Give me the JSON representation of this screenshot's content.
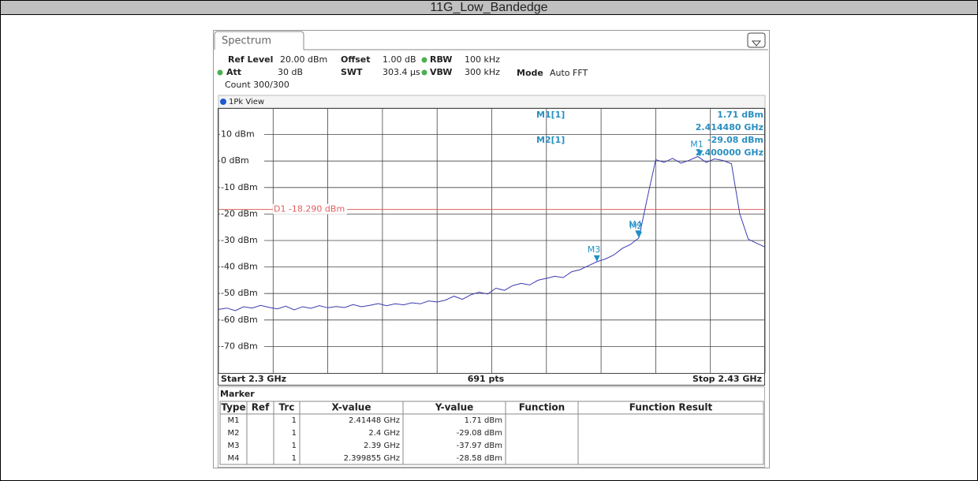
{
  "title": "11G_Low_Bandedge",
  "tab": "Spectrum",
  "settings": {
    "ref_level_label": "Ref Level",
    "ref_level": "20.00 dBm",
    "offset_label": "Offset",
    "offset": "1.00 dB",
    "rbw_label": "RBW",
    "rbw": "100 kHz",
    "att_label": "Att",
    "att": "30 dB",
    "swt_label": "SWT",
    "swt": "303.4 µs",
    "vbw_label": "VBW",
    "vbw": "300 kHz",
    "mode_label": "Mode",
    "mode": "Auto FFT",
    "count": "Count 300/300",
    "view": "1Pk View"
  },
  "readout": [
    {
      "name": "M1[1]",
      "y": "1.71 dBm",
      "x": "2.414480 GHz"
    },
    {
      "name": "M2[1]",
      "y": "-29.08 dBm",
      "x": "2.400000 GHz"
    }
  ],
  "chart_data": {
    "type": "line",
    "x": [
      2.3,
      2.302,
      2.304,
      2.306,
      2.308,
      2.31,
      2.312,
      2.314,
      2.316,
      2.318,
      2.32,
      2.322,
      2.324,
      2.326,
      2.328,
      2.33,
      2.332,
      2.334,
      2.336,
      2.338,
      2.34,
      2.342,
      2.344,
      2.346,
      2.348,
      2.35,
      2.352,
      2.354,
      2.356,
      2.358,
      2.36,
      2.362,
      2.364,
      2.366,
      2.368,
      2.37,
      2.372,
      2.374,
      2.376,
      2.378,
      2.38,
      2.382,
      2.384,
      2.386,
      2.388,
      2.39,
      2.392,
      2.394,
      2.396,
      2.398,
      2.4,
      2.402,
      2.404,
      2.406,
      2.408,
      2.41,
      2.412,
      2.414,
      2.416,
      2.418,
      2.42,
      2.422,
      2.424,
      2.426,
      2.428,
      2.43
    ],
    "series": [
      {
        "color": "#3a3ab0",
        "values": [
          -56,
          -55.5,
          -56.5,
          -55,
          -55.5,
          -54.5,
          -55.2,
          -55.8,
          -54.8,
          -56.2,
          -55,
          -55.6,
          -54.6,
          -55.4,
          -54.9,
          -55.3,
          -54.2,
          -55,
          -54.5,
          -53.8,
          -54.6,
          -53.9,
          -54.3,
          -53.5,
          -53.9,
          -52.8,
          -53.2,
          -52.5,
          -51,
          -52.2,
          -50.5,
          -49.5,
          -50.2,
          -48,
          -48.8,
          -47,
          -46.2,
          -46.8,
          -45,
          -44.3,
          -43.5,
          -44,
          -41.8,
          -41,
          -39.5,
          -38,
          -37,
          -35.5,
          -33,
          -31.5,
          -29,
          -14,
          0.5,
          -0.5,
          1,
          -0.8,
          0.3,
          1.7,
          -0.5,
          0.8,
          0.2,
          -1,
          -20,
          -29.5,
          -31,
          -32.5
        ]
      }
    ],
    "xlim": [
      2.3,
      2.43
    ],
    "ylim": [
      -80,
      20
    ],
    "xticks": [
      2.3,
      2.313,
      2.326,
      2.339,
      2.352,
      2.365,
      2.378,
      2.391,
      2.404,
      2.417,
      2.43
    ],
    "yticks": [
      {
        "value": 10,
        "label": "10 dBm"
      },
      {
        "value": 0,
        "label": "0 dBm"
      },
      {
        "value": -10,
        "label": "-10 dBm"
      },
      {
        "value": -20,
        "label": "-20 dBm"
      },
      {
        "value": -30,
        "label": "-30 dBm"
      },
      {
        "value": -40,
        "label": "-40 dBm"
      },
      {
        "value": -50,
        "label": "-50 dBm"
      },
      {
        "value": -60,
        "label": "-60 dBm"
      },
      {
        "value": -70,
        "label": "-70 dBm"
      }
    ],
    "grid": true,
    "display_line": {
      "value": -18.29,
      "label": "D1 -18.290 dBm",
      "color": "#e06060"
    },
    "markers": [
      {
        "name": "M1",
        "x": 2.41448,
        "y": 1.71
      },
      {
        "name": "M2",
        "x": 2.4,
        "y": -29.08
      },
      {
        "name": "M3",
        "x": 2.39,
        "y": -37.97
      },
      {
        "name": "M4",
        "x": 2.399855,
        "y": -28.58
      }
    ],
    "marker_color": "#1e90c8",
    "start": "Start 2.3 GHz",
    "points": "691 pts",
    "stop": "Stop 2.43 GHz"
  },
  "table": {
    "title": "Marker",
    "header": [
      "Type",
      "Ref",
      "Trc",
      "X-value",
      "Y-value",
      "Function",
      "Function Result"
    ],
    "rows": [
      [
        "M1",
        "",
        "1",
        "2.41448 GHz",
        "1.71 dBm",
        "",
        ""
      ],
      [
        "M2",
        "",
        "1",
        "2.4 GHz",
        "-29.08 dBm",
        "",
        ""
      ],
      [
        "M3",
        "",
        "1",
        "2.39 GHz",
        "-37.97 dBm",
        "",
        ""
      ],
      [
        "M4",
        "",
        "1",
        "2.399855 GHz",
        "-28.58 dBm",
        "",
        ""
      ]
    ]
  }
}
